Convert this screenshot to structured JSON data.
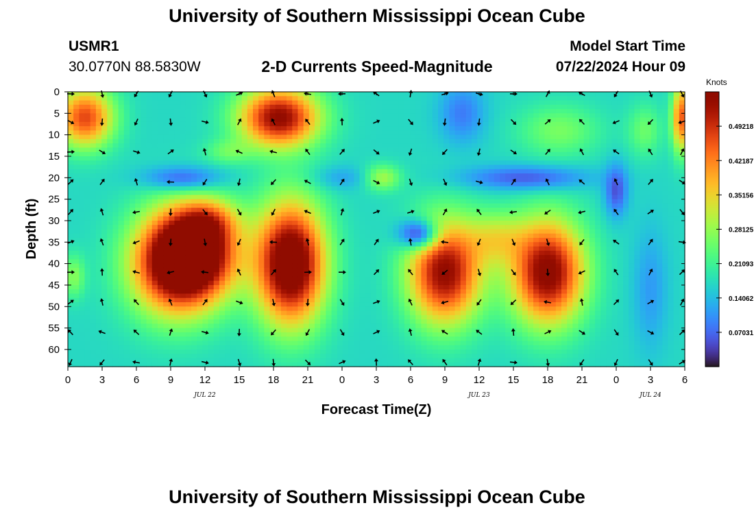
{
  "title": "University of Southern Mississippi Ocean Cube",
  "station": {
    "id": "USMR1",
    "coords": "30.0770N  88.5830W"
  },
  "model_start": {
    "label": "Model Start Time",
    "value": "07/22/2024 Hour 09"
  },
  "chart_data": {
    "type": "heatmap",
    "title": "2-D Currents Speed-Magnitude",
    "xlabel": "Forecast Time(Z)",
    "ylabel": "Depth (ft)",
    "x_hours": [
      0,
      54
    ],
    "x_tick_labels": [
      "0",
      "3",
      "6",
      "9",
      "12",
      "15",
      "18",
      "21",
      "0",
      "3",
      "6",
      "9",
      "12",
      "15",
      "18",
      "21",
      "0",
      "3",
      "6"
    ],
    "date_labels": [
      "JUL 22",
      "JUL 23",
      "JUL 24"
    ],
    "y_range": [
      0,
      64
    ],
    "y_ticks": [
      0,
      5,
      10,
      15,
      20,
      25,
      30,
      35,
      40,
      45,
      50,
      55,
      60
    ],
    "colorbar": {
      "unit": "Knots",
      "range": [
        0,
        0.5625
      ],
      "tick_values": [
        0.49218,
        0.42187,
        0.35156,
        0.28125,
        0.21093,
        0.14062,
        0.07031
      ],
      "tick_labels": [
        "0.49218",
        "0.42187",
        "0.35156",
        "0.28125",
        "0.21093",
        "0.14062",
        "0.07031"
      ]
    },
    "speed_blobs": [
      {
        "h": 1.5,
        "d": 6,
        "sh": 2.5,
        "sd": 7,
        "v": 0.3
      },
      {
        "h": 18.5,
        "d": 6,
        "sh": 3.5,
        "sd": 7,
        "v": 0.38
      },
      {
        "h": 9.5,
        "d": 40,
        "sh": 4,
        "sd": 12,
        "v": 0.4
      },
      {
        "h": 19.5,
        "d": 40,
        "sh": 3,
        "sd": 14,
        "v": 0.46
      },
      {
        "h": 12.5,
        "d": 30,
        "sh": 2.5,
        "sd": 5,
        "v": 0.12
      },
      {
        "h": 11.5,
        "d": 37,
        "sh": 3.5,
        "sd": 10,
        "v": 0.28
      },
      {
        "h": 33,
        "d": 42,
        "sh": 3.2,
        "sd": 12,
        "v": 0.38
      },
      {
        "h": 42,
        "d": 42,
        "sh": 3.2,
        "sd": 12,
        "v": 0.4
      },
      {
        "h": 37.5,
        "d": 34,
        "sh": 2.5,
        "sd": 6,
        "v": 0.12
      },
      {
        "h": 53.7,
        "d": 6,
        "sh": 0.8,
        "sd": 8,
        "v": 0.28
      },
      {
        "h": 27.5,
        "d": 20,
        "sh": 1.6,
        "sd": 3,
        "v": 0.13
      },
      {
        "h": 43,
        "d": 9,
        "sh": 3.5,
        "sd": 6,
        "v": 0.09
      },
      {
        "h": 50.5,
        "d": 9,
        "sh": 1.5,
        "sd": 6,
        "v": 0.08
      },
      {
        "h": 14,
        "d": 14,
        "sh": 2,
        "sd": 3,
        "v": 0.07
      },
      {
        "h": 0.5,
        "d": 43,
        "sh": 1,
        "sd": 5,
        "v": 0.1
      }
    ],
    "slow_blobs": [
      {
        "h": 10,
        "d": 20,
        "sh": 3.5,
        "sd": 2.8,
        "v": 0.6
      },
      {
        "h": 24,
        "d": 20,
        "sh": 2.5,
        "sd": 2.8,
        "v": 0.3
      },
      {
        "h": 40,
        "d": 20,
        "sh": 5.5,
        "sd": 2.8,
        "v": 0.65
      },
      {
        "h": 34.5,
        "d": 5,
        "sh": 2,
        "sd": 7,
        "v": 0.5
      },
      {
        "h": 30.5,
        "d": 33,
        "sh": 1.8,
        "sd": 3.5,
        "v": 0.75
      },
      {
        "h": 48,
        "d": 23,
        "sh": 1,
        "sd": 6,
        "v": 0.7
      },
      {
        "h": 51,
        "d": 46,
        "sh": 1.5,
        "sd": 14,
        "v": 0.35
      }
    ]
  }
}
